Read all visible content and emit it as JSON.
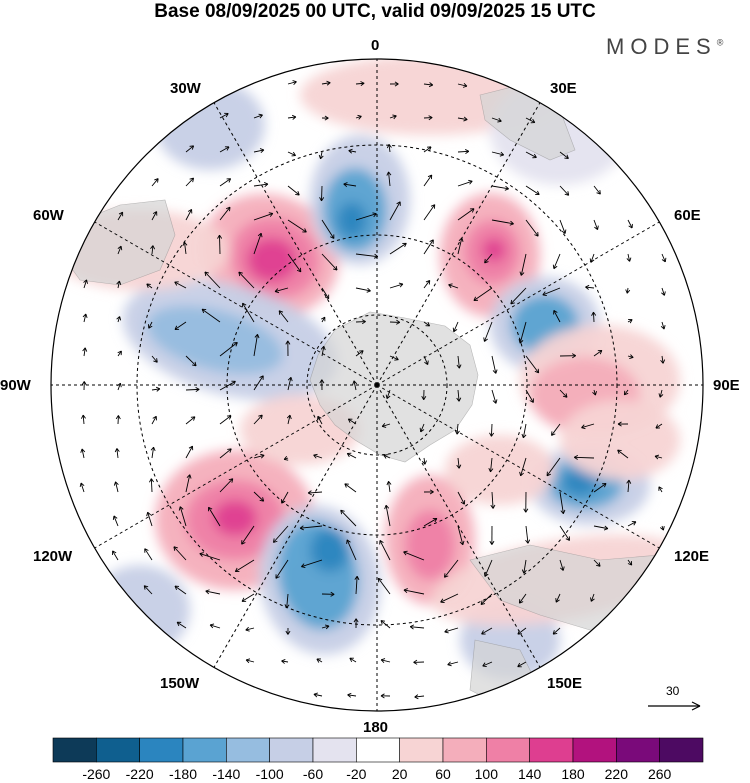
{
  "title": "Base 08/09/2025 00 UTC, valid 09/09/2025 15 UTC",
  "brand": "MODES",
  "brand_mark": "®",
  "labels": {
    "lon_0": "0",
    "lon_30e": "30E",
    "lon_60e": "60E",
    "lon_90e": "90E",
    "lon_120e": "120E",
    "lon_150e": "150E",
    "lon_180": "180",
    "lon_150w": "150W",
    "lon_120w": "120W",
    "lon_90w": "90W",
    "lon_60w": "60W",
    "lon_30w": "30W"
  },
  "reference_vector": {
    "label": "30"
  },
  "colorbar": {
    "labels": [
      "-260",
      "-220",
      "-180",
      "-140",
      "-100",
      "-60",
      "-20",
      "20",
      "60",
      "100",
      "140",
      "180",
      "220",
      "260"
    ],
    "colors": [
      "#0d3a58",
      "#0f5f8f",
      "#2b85bf",
      "#5aa3d2",
      "#96bde0",
      "#c6cfe6",
      "#e4e3ef",
      "#ffffff",
      "#f7d4d4",
      "#f4aebb",
      "#ef80a6",
      "#de3e90",
      "#b2127e",
      "#7a0a7a",
      "#4d0a62"
    ]
  },
  "legend_colors": {
    "land": "#d6d6d6",
    "gridline": "#000000"
  }
}
